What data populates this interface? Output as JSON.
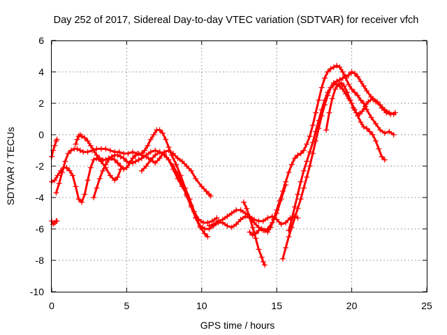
{
  "chart_data": {
    "type": "scatter",
    "title": "Day 252 of 2017, Sidereal Day-to-day VTEC variation (SDTVAR) for receiver vfch",
    "xlabel": "GPS time / hours",
    "ylabel": "SDTVAR / TECUs",
    "xlim": [
      0,
      25
    ],
    "ylim": [
      -10,
      6
    ],
    "xticks": [
      0,
      5,
      10,
      15,
      20,
      25
    ],
    "yticks": [
      -10,
      -8,
      -6,
      -4,
      -2,
      0,
      2,
      4,
      6
    ],
    "grid": true,
    "legend": "none",
    "marker": "plus",
    "color": "#ff0000",
    "series": [
      {
        "name": "arc-1",
        "x": [
          0.0,
          0.1,
          0.2,
          0.3,
          0.35
        ],
        "y": [
          -1.4,
          -1.0,
          -0.7,
          -0.4,
          -0.3
        ]
      },
      {
        "name": "arc-2",
        "x": [
          0.0,
          0.1,
          0.2,
          0.3,
          0.35
        ],
        "y": [
          -5.5,
          -5.7,
          -5.6,
          -5.5,
          -5.5
        ]
      },
      {
        "name": "arc-3",
        "x": [
          0.0,
          0.2,
          0.4,
          0.6,
          0.8,
          1.0,
          1.2,
          1.4,
          1.6,
          1.8,
          2.0,
          2.2,
          2.4,
          2.6,
          2.8,
          3.0,
          3.3,
          3.6,
          3.9,
          4.2,
          4.4,
          4.6
        ],
        "y": [
          -3.0,
          -2.9,
          -2.6,
          -2.3,
          -2.1,
          -2.1,
          -2.3,
          -2.6,
          -3.3,
          -4.1,
          -4.3,
          -3.8,
          -2.9,
          -2.1,
          -1.6,
          -1.5,
          -1.7,
          -2.1,
          -2.6,
          -2.9,
          -2.7,
          -2.2
        ]
      },
      {
        "name": "arc-4",
        "x": [
          0.3,
          0.5,
          0.7,
          0.9,
          1.1,
          1.3,
          1.5,
          1.7,
          1.9,
          2.1,
          2.4,
          2.7,
          3.0,
          3.3,
          3.6,
          3.9,
          4.2,
          4.5,
          4.8,
          5.1,
          5.4,
          5.7,
          6.0,
          6.3,
          6.6,
          6.9,
          7.2,
          7.5,
          7.8,
          8.1,
          8.4,
          8.7,
          9.0,
          9.3,
          9.6,
          10.0,
          10.3,
          10.5,
          10.6
        ],
        "y": [
          -3.7,
          -3.1,
          -2.4,
          -1.7,
          -1.2,
          -1.0,
          -0.9,
          -0.9,
          -1.0,
          -1.1,
          -1.1,
          -1.0,
          -0.9,
          -0.9,
          -0.9,
          -1.0,
          -1.1,
          -1.1,
          -1.2,
          -1.2,
          -1.1,
          -1.2,
          -1.3,
          -1.4,
          -1.6,
          -1.8,
          -1.5,
          -1.1,
          -1.0,
          -1.2,
          -1.5,
          -1.7,
          -2.0,
          -2.3,
          -2.8,
          -3.3,
          -3.6,
          -3.8,
          -3.9
        ]
      },
      {
        "name": "arc-5",
        "x": [
          1.6,
          1.7,
          1.8,
          1.9,
          2.0,
          2.2,
          2.4,
          2.6,
          2.8,
          3.0,
          3.2,
          3.4,
          3.6,
          3.8,
          4.0,
          4.2,
          4.4,
          4.6,
          4.8,
          5.0,
          5.2,
          5.4,
          5.6,
          5.8,
          6.0,
          6.2,
          6.4,
          6.6,
          6.8,
          7.0,
          7.2,
          7.4,
          7.6,
          7.8,
          8.0,
          8.3,
          8.6,
          8.9,
          9.2,
          9.5,
          9.8,
          10.1,
          10.4,
          10.7,
          11.0
        ],
        "y": [
          -0.6,
          -0.3,
          -0.1,
          0.0,
          -0.1,
          -0.2,
          -0.4,
          -0.7,
          -1.0,
          -1.3,
          -1.5,
          -1.6,
          -1.6,
          -1.5,
          -1.5,
          -1.6,
          -1.8,
          -2.0,
          -2.2,
          -2.1,
          -1.8,
          -1.5,
          -1.3,
          -1.2,
          -1.2,
          -1.0,
          -0.7,
          -0.3,
          0.0,
          0.3,
          0.3,
          0.1,
          -0.3,
          -0.8,
          -1.3,
          -1.9,
          -2.6,
          -3.4,
          -4.1,
          -4.9,
          -5.4,
          -5.6,
          -5.6,
          -5.5,
          -5.3
        ]
      },
      {
        "name": "arc-6",
        "x": [
          2.8,
          3.0,
          3.2,
          3.4,
          3.6,
          3.8,
          4.0,
          4.2,
          4.4,
          4.6,
          4.8,
          5.0,
          5.2,
          5.4,
          5.6,
          5.8,
          6.0,
          6.3,
          6.6,
          6.9,
          7.2,
          7.5,
          7.8,
          8.1,
          8.4,
          8.7,
          9.0,
          9.3,
          9.6,
          9.9,
          10.2,
          10.4
        ],
        "y": [
          -4.0,
          -3.4,
          -2.8,
          -2.3,
          -1.9,
          -1.6,
          -1.4,
          -1.3,
          -1.3,
          -1.4,
          -1.5,
          -1.7,
          -1.8,
          -1.8,
          -1.7,
          -1.6,
          -1.5,
          -1.3,
          -1.1,
          -1.0,
          -1.1,
          -1.3,
          -1.6,
          -2.0,
          -2.5,
          -3.2,
          -3.9,
          -4.6,
          -5.3,
          -5.9,
          -6.3,
          -6.5
        ]
      },
      {
        "name": "arc-7",
        "x": [
          6.0,
          6.3,
          6.6,
          6.9,
          7.2,
          7.5,
          7.8,
          8.1,
          8.4,
          8.7,
          9.0,
          9.3,
          9.6,
          9.9,
          10.2,
          10.5,
          10.8,
          11.1,
          11.4,
          11.7,
          12.0,
          12.3,
          12.6,
          12.9,
          13.2,
          13.5,
          13.8,
          14.1,
          14.4,
          14.7,
          15.0,
          15.3,
          15.6
        ],
        "y": [
          -2.3,
          -2.0,
          -1.6,
          -1.3,
          -1.1,
          -1.2,
          -1.6,
          -2.2,
          -2.8,
          -3.3,
          -3.8,
          -4.5,
          -5.3,
          -5.8,
          -6.0,
          -6.0,
          -5.8,
          -5.6,
          -5.6,
          -5.8,
          -5.9,
          -5.7,
          -5.4,
          -5.2,
          -5.3,
          -5.6,
          -5.9,
          -6.1,
          -6.0,
          -5.6,
          -5.0,
          -4.1,
          -3.2
        ]
      },
      {
        "name": "arc-8",
        "x": [
          10.5,
          10.8,
          11.1,
          11.4,
          11.7,
          12.0,
          12.3,
          12.6,
          12.9,
          13.2,
          13.5,
          13.8,
          14.1,
          14.4,
          14.7,
          15.0,
          15.3,
          15.6,
          15.9,
          16.2,
          16.4
        ],
        "y": [
          -5.8,
          -5.7,
          -5.5,
          -5.4,
          -5.2,
          -5.0,
          -4.8,
          -4.8,
          -5.0,
          -5.2,
          -5.4,
          -5.5,
          -5.5,
          -5.3,
          -5.2,
          -5.4,
          -5.7,
          -5.6,
          -5.3,
          -5.2,
          -5.3
        ]
      },
      {
        "name": "arc-9",
        "x": [
          12.8,
          13.0,
          13.2,
          13.4,
          13.6,
          13.8,
          14.0,
          14.1,
          14.2
        ],
        "y": [
          -4.3,
          -4.7,
          -5.3,
          -5.9,
          -6.6,
          -7.3,
          -7.8,
          -8.1,
          -8.3
        ]
      },
      {
        "name": "arc-10",
        "x": [
          13.2,
          13.4,
          13.6,
          13.8,
          14.0,
          14.2,
          14.4,
          14.6,
          14.8,
          15.0,
          15.2,
          15.4,
          15.6,
          15.8,
          16.0,
          16.2,
          16.4,
          16.6,
          16.8,
          17.0,
          17.2,
          17.4,
          17.6,
          17.8,
          18.0,
          18.2,
          18.4,
          18.6,
          18.8,
          19.0,
          19.2,
          19.4,
          19.6,
          19.8,
          20.0,
          20.2,
          20.4,
          20.6,
          20.8,
          21.0,
          21.3,
          21.6,
          21.9,
          22.2,
          22.5,
          22.8
        ],
        "y": [
          -6.2,
          -6.4,
          -6.3,
          -6.1,
          -6.0,
          -6.1,
          -6.2,
          -5.9,
          -5.4,
          -4.8,
          -4.2,
          -3.6,
          -3.0,
          -2.4,
          -1.9,
          -1.5,
          -1.3,
          -1.2,
          -1.0,
          -0.6,
          -0.1,
          0.6,
          1.4,
          2.2,
          3.0,
          3.6,
          4.0,
          4.2,
          4.3,
          4.4,
          4.3,
          4.0,
          3.6,
          3.2,
          2.9,
          2.7,
          2.5,
          2.2,
          2.0,
          1.6,
          1.1,
          0.7,
          0.3,
          0.1,
          0.2,
          0.0
        ]
      },
      {
        "name": "arc-11",
        "x": [
          15.4,
          15.6,
          15.8,
          16.0,
          16.2,
          16.4,
          16.6,
          16.8,
          17.0,
          17.2,
          17.4,
          17.6,
          17.8,
          18.0,
          18.2,
          18.4,
          18.6,
          18.8,
          19.0,
          19.2,
          19.4,
          19.6,
          19.8,
          20.0,
          20.2,
          20.4,
          20.6,
          20.8,
          21.0,
          21.3,
          21.6,
          21.9,
          22.2,
          22.5,
          22.8
        ],
        "y": [
          -7.9,
          -7.2,
          -6.5,
          -5.9,
          -5.3,
          -4.7,
          -4.1,
          -3.4,
          -2.7,
          -2.0,
          -1.2,
          -0.4,
          0.4,
          1.2,
          1.9,
          2.5,
          3.0,
          3.3,
          3.4,
          3.5,
          3.6,
          3.7,
          3.8,
          4.0,
          3.9,
          3.7,
          3.4,
          3.1,
          2.8,
          2.4,
          2.1,
          1.9,
          1.6,
          1.4,
          1.3
        ]
      },
      {
        "name": "arc-12",
        "x": [
          15.8,
          16.0,
          16.2,
          16.4,
          16.6,
          16.8,
          17.0,
          17.2,
          17.4,
          17.6,
          17.8,
          18.0,
          18.2,
          18.4,
          18.6,
          18.8,
          19.0,
          19.2,
          19.4,
          19.6,
          19.8,
          20.0,
          20.2,
          20.4,
          20.6,
          20.8,
          21.0,
          21.2,
          21.4,
          21.6,
          21.8,
          22.0,
          22.2
        ],
        "y": [
          -6.1,
          -5.4,
          -4.6,
          -3.8,
          -3.0,
          -2.3,
          -1.7,
          -1.1,
          -0.5,
          0.2,
          0.9,
          1.6,
          2.2,
          2.7,
          3.0,
          3.2,
          3.2,
          3.1,
          2.9,
          2.6,
          2.3,
          2.0,
          1.6,
          1.2,
          0.8,
          0.5,
          0.4,
          0.2,
          0.0,
          -0.4,
          -0.9,
          -1.4,
          -1.6
        ]
      },
      {
        "name": "arc-13",
        "x": [
          18.3,
          18.5,
          18.7,
          18.9,
          19.1,
          19.3,
          19.5,
          19.7,
          19.9,
          20.1,
          20.3,
          20.5,
          20.7,
          20.9,
          21.1,
          21.4,
          21.7,
          22.0,
          22.3,
          22.6,
          22.9
        ],
        "y": [
          0.3,
          1.4,
          2.3,
          2.9,
          3.2,
          3.3,
          3.1,
          2.7,
          2.2,
          1.7,
          1.4,
          1.3,
          1.5,
          1.8,
          2.1,
          2.3,
          2.1,
          1.7,
          1.4,
          1.3,
          1.4
        ]
      }
    ]
  }
}
